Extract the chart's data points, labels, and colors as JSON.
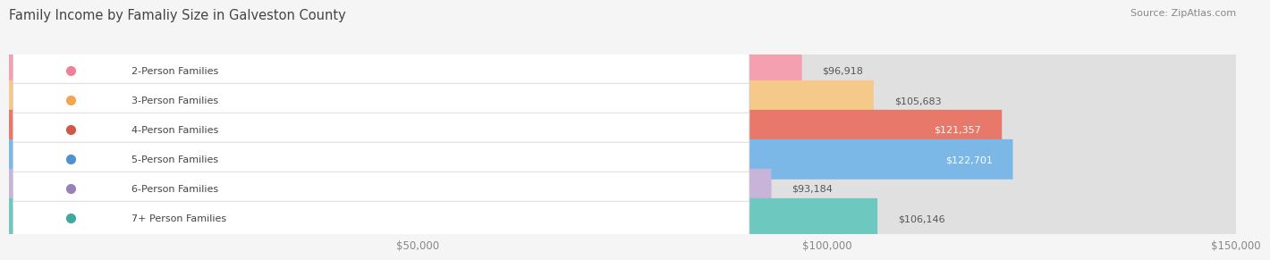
{
  "title": "Family Income by Famaliy Size in Galveston County",
  "source": "Source: ZipAtlas.com",
  "categories": [
    "2-Person Families",
    "3-Person Families",
    "4-Person Families",
    "5-Person Families",
    "6-Person Families",
    "7+ Person Families"
  ],
  "values": [
    96918,
    105683,
    121357,
    122701,
    93184,
    106146
  ],
  "labels": [
    "$96,918",
    "$105,683",
    "$121,357",
    "$122,701",
    "$93,184",
    "$106,146"
  ],
  "bar_colors": [
    "#F4A0B0",
    "#F5C98A",
    "#E8786A",
    "#7BB8E8",
    "#C8B4D8",
    "#6DC8C0"
  ],
  "label_colors": [
    "#555555",
    "#555555",
    "#ffffff",
    "#ffffff",
    "#555555",
    "#555555"
  ],
  "dot_colors": [
    "#F08098",
    "#F0A850",
    "#D05848",
    "#5090D0",
    "#9880B8",
    "#40A8A0"
  ],
  "background_color": "#f5f5f5",
  "bar_background": "#e0e0e0",
  "xlim": [
    0,
    150000
  ],
  "xtick_labels": [
    "$50,000",
    "$100,000",
    "$150,000"
  ],
  "xtick_values": [
    50000,
    100000,
    150000
  ],
  "title_fontsize": 10.5,
  "source_fontsize": 8,
  "bar_height": 0.68,
  "figsize": [
    14.06,
    3.05
  ]
}
